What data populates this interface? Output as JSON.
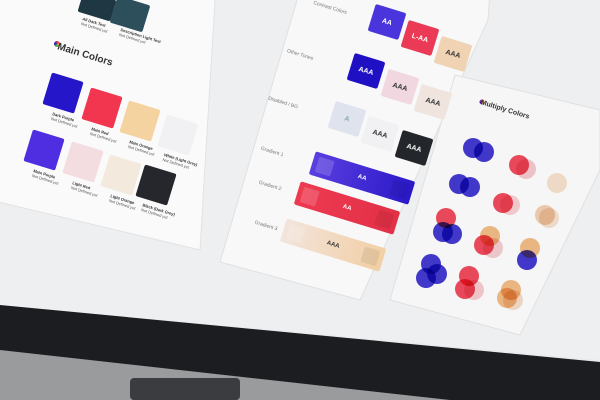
{
  "colors": {
    "dark_purple": "#2616c9",
    "main_red": "#f2364f",
    "main_orange": "#f5d3a0",
    "white_grey": "#f1f1f3",
    "main_purple": "#4e2ee0",
    "light_red": "#f3dde1",
    "light_orange": "#f3e9dd",
    "black_grey": "#25272c",
    "dark_text": "#1e3742",
    "light_text": "#2d4f5c"
  },
  "top_section": {
    "items": [
      {
        "name": "All Dark Text",
        "note": "Not Defined yet"
      },
      {
        "name": "Description Light Text",
        "note": "Not Defined yet"
      }
    ]
  },
  "main_colors": {
    "title": "Main Colors",
    "swatches": [
      {
        "name": "Dark Purple",
        "note": "Not Defined yet"
      },
      {
        "name": "Main Red",
        "note": "Not Defined yet"
      },
      {
        "name": "Main Orange",
        "note": "Not Defined yet"
      },
      {
        "name": "White (Light Grey)",
        "note": "Not Defined yet"
      },
      {
        "name": "Main Purple",
        "note": "Not Defined yet"
      },
      {
        "name": "Light Red",
        "note": "Not Defined yet"
      },
      {
        "name": "Light Orange",
        "note": "Not Defined yet"
      },
      {
        "name": "Black (Dark Grey)",
        "note": "Not Defined yet"
      }
    ]
  },
  "contrast": {
    "rows": [
      {
        "label": "Contrast Colors",
        "tiles": [
          "AA",
          "L-AA",
          "AAA"
        ]
      },
      {
        "label": "Other Tones",
        "tiles": [
          "AAA",
          "AAA",
          "AAA"
        ]
      },
      {
        "label": "Disabled / BG",
        "tiles": [
          "A",
          "AAA",
          "AAA"
        ]
      }
    ],
    "gradients": [
      {
        "label": "Gradient 1",
        "text": "AA"
      },
      {
        "label": "Gradient 2",
        "text": "AA"
      },
      {
        "label": "Gradient 3",
        "text": "AAA"
      }
    ]
  },
  "multiply": {
    "title": "Multiply Colors"
  }
}
